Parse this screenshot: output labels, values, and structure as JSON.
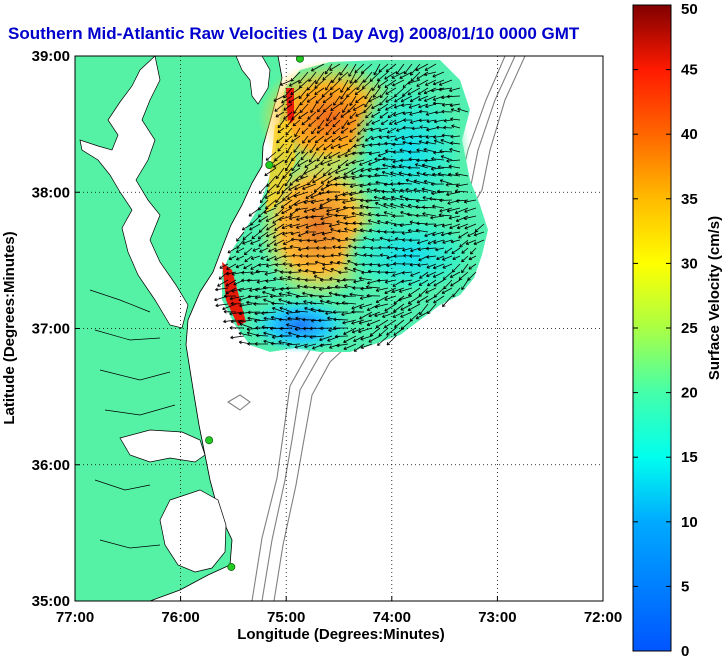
{
  "chart_data": {
    "type": "heatmap",
    "title": "Southern Mid-Atlantic Raw Velocities (1 Day Avg) 2008/01/10 0000 GMT",
    "xlabel": "Longitude (Degrees:Minutes)",
    "ylabel": "Latitude (Degrees:Minutes)",
    "x_range": [
      -77,
      -72
    ],
    "y_range": [
      35,
      39
    ],
    "x_ticks": [
      {
        "value": -77,
        "label": "77:00"
      },
      {
        "value": -76,
        "label": "76:00"
      },
      {
        "value": -75,
        "label": "75:00"
      },
      {
        "value": -74,
        "label": "74:00"
      },
      {
        "value": -73,
        "label": "73:00"
      },
      {
        "value": -72,
        "label": "72:00"
      }
    ],
    "y_ticks": [
      {
        "value": 35,
        "label": "35:00"
      },
      {
        "value": 36,
        "label": "36:00"
      },
      {
        "value": 37,
        "label": "37:00"
      },
      {
        "value": 38,
        "label": "38:00"
      },
      {
        "value": 39,
        "label": "39:00"
      }
    ],
    "grid": "dotted",
    "colorbar": {
      "label": "Surface Velocity (cm/s)",
      "range": [
        0,
        50
      ],
      "ticks": [
        0,
        5,
        10,
        15,
        20,
        25,
        30,
        35,
        40,
        45,
        50
      ],
      "colormap": "jet"
    },
    "stations": [
      {
        "lon": -74.87,
        "lat": 38.98
      },
      {
        "lon": -75.16,
        "lat": 38.2
      },
      {
        "lon": -75.73,
        "lat": 36.18
      },
      {
        "lon": -75.52,
        "lat": 35.25
      }
    ],
    "colors": {
      "land": "#55f2a5",
      "grid": "#888888",
      "bathymetry": "#808080",
      "title": "#0000cc",
      "station": "#22cc22"
    }
  }
}
